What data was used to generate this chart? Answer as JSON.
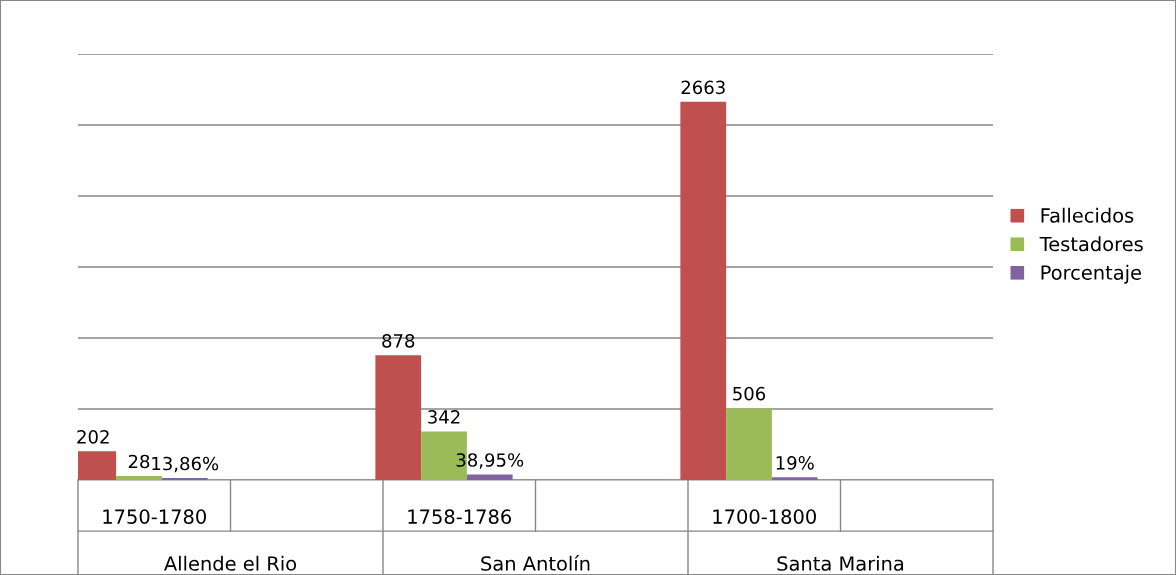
{
  "chart_data": {
    "type": "bar",
    "categories": [
      "1750-1780",
      "1758-1786",
      "1700-1800"
    ],
    "annotations": [
      "Allende el Rio",
      "San Antolín",
      "Santa Marina"
    ],
    "ylim": [
      0,
      3000
    ],
    "yticks": [
      {
        "value": 0,
        "label": null
      },
      {
        "value": 500,
        "label": null
      },
      {
        "value": 1000,
        "label": null
      },
      {
        "value": 1500,
        "label": null
      },
      {
        "value": 2000,
        "label": null
      },
      {
        "value": 2500,
        "label": null
      },
      {
        "value": 3000,
        "label": null
      }
    ],
    "tick_labels": "x",
    "grid": "y",
    "legend": "right",
    "series": [
      {
        "name": "Fallecidos",
        "color": "#c0504d",
        "values": [
          202,
          878,
          2663
        ],
        "value_labels": [
          "202",
          "878",
          "2663"
        ]
      },
      {
        "name": "Testadores",
        "color": "#9bbb59",
        "values": [
          28,
          342,
          506
        ],
        "value_labels": [
          "28",
          "342",
          "506"
        ]
      },
      {
        "name": "Porcentaje",
        "color": "#8064a2",
        "values": [
          13.86,
          38.95,
          19
        ],
        "value_labels": [
          "13,86%",
          "38,95%",
          "19%"
        ]
      }
    ]
  }
}
